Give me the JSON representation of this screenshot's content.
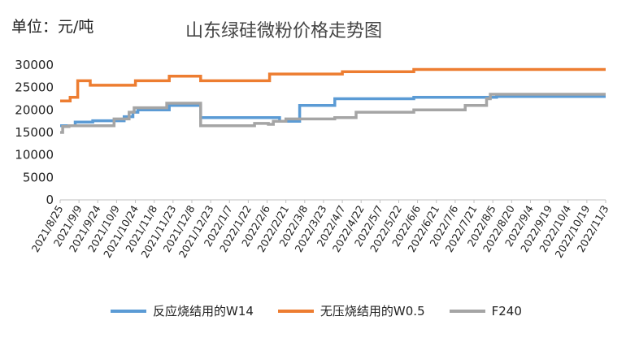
{
  "unit_label": "单位：元/吨",
  "chart_data": {
    "type": "line",
    "title": "山东绿硅微粉价格走势图",
    "ylabel": "单位：元/吨",
    "xlabel": "",
    "ylim": [
      0,
      30000
    ],
    "yticks": [
      0,
      5000,
      10000,
      15000,
      20000,
      25000,
      30000
    ],
    "x_ticks": [
      "2021/8/25",
      "2021/9/9",
      "2021/9/24",
      "2021/10/9",
      "2021/10/24",
      "2021/11/8",
      "2021/11/23",
      "2021/12/8",
      "2021/12/23",
      "2022/1/7",
      "2022/1/22",
      "2022/2/6",
      "2022/2/21",
      "2022/3/8",
      "2022/3/23",
      "2022/4/7",
      "2022/4/22",
      "2022/5/7",
      "2022/5/22",
      "2022/6/6",
      "2022/6/21",
      "2022/7/6",
      "2022/7/21",
      "2022/8/5",
      "2022/8/20",
      "2022/9/4",
      "2022/9/19",
      "2022/10/4",
      "2022/10/19",
      "2022/11/3"
    ],
    "grid": false,
    "legend_position": "bottom",
    "series": [
      {
        "name": "反应烧结用的W14",
        "color": "#5B9BD5",
        "points": [
          [
            "2021/8/25",
            16500
          ],
          [
            "2021/9/6",
            17300
          ],
          [
            "2021/9/20",
            17600
          ],
          [
            "2021/10/15",
            18500
          ],
          [
            "2021/10/22",
            19500
          ],
          [
            "2021/10/26",
            20000
          ],
          [
            "2021/11/20",
            21000
          ],
          [
            "2021/12/15",
            18300
          ],
          [
            "2022/2/16",
            17500
          ],
          [
            "2022/3/4",
            21000
          ],
          [
            "2022/4/1",
            22500
          ],
          [
            "2022/6/3",
            22800
          ],
          [
            "2022/8/8",
            23000
          ],
          [
            "2022/11/3",
            23000
          ]
        ]
      },
      {
        "name": "无压烧结用的W0.5",
        "color": "#ED7D31",
        "points": [
          [
            "2021/8/25",
            22000
          ],
          [
            "2021/9/2",
            22800
          ],
          [
            "2021/9/8",
            26500
          ],
          [
            "2021/9/18",
            25500
          ],
          [
            "2021/10/24",
            26500
          ],
          [
            "2021/11/20",
            27500
          ],
          [
            "2021/12/15",
            26500
          ],
          [
            "2022/2/8",
            28000
          ],
          [
            "2022/4/7",
            28500
          ],
          [
            "2022/6/3",
            29000
          ],
          [
            "2022/11/3",
            29000
          ]
        ]
      },
      {
        "name": "F240",
        "color": "#A5A5A5",
        "points": [
          [
            "2021/8/25",
            15000
          ],
          [
            "2021/8/27",
            16300
          ],
          [
            "2021/9/1",
            16500
          ],
          [
            "2021/10/7",
            18000
          ],
          [
            "2021/10/19",
            19500
          ],
          [
            "2021/10/23",
            20500
          ],
          [
            "2021/11/18",
            21500
          ],
          [
            "2021/12/15",
            16500
          ],
          [
            "2022/1/27",
            17000
          ],
          [
            "2022/2/7",
            16800
          ],
          [
            "2022/2/11",
            17500
          ],
          [
            "2022/2/21",
            18000
          ],
          [
            "2022/4/1",
            18300
          ],
          [
            "2022/4/18",
            19500
          ],
          [
            "2022/6/3",
            20000
          ],
          [
            "2022/7/14",
            21000
          ],
          [
            "2022/7/31",
            22500
          ],
          [
            "2022/8/3",
            23500
          ],
          [
            "2022/11/3",
            23500
          ]
        ]
      }
    ]
  }
}
